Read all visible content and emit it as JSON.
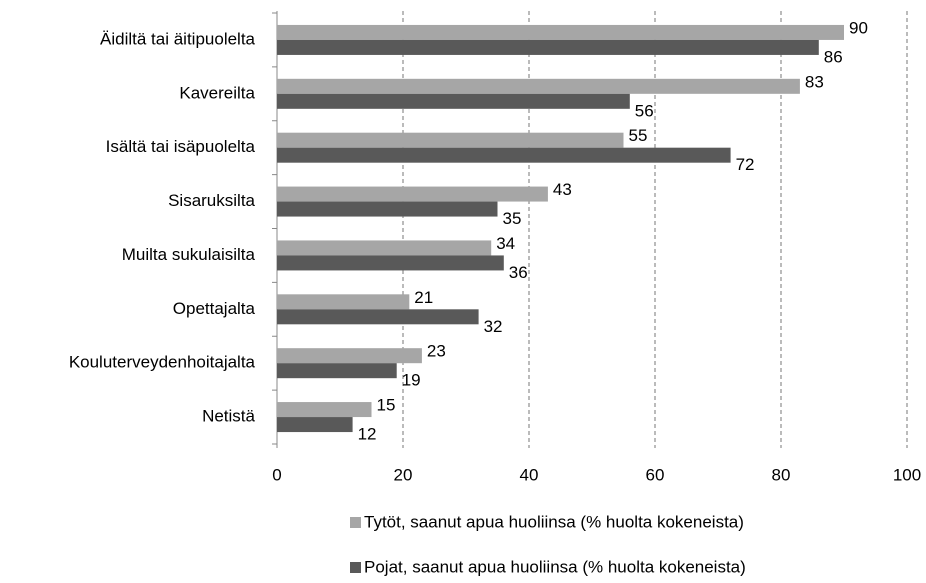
{
  "chart_data": {
    "type": "hbar",
    "categories": [
      "Äidiltä tai äitipuolelta",
      "Kavereilta",
      "Isältä tai isäpuolelta",
      "Sisaruksilta",
      "Muilta sukulaisilta",
      "Opettajalta",
      "Kouluterveydenhoitajalta",
      "Netistä"
    ],
    "series": [
      {
        "name": "Tytöt, saanut apua huoliinsa (% huolta kokeneista)",
        "color": "#a6a6a6",
        "values": [
          90,
          83,
          55,
          43,
          34,
          21,
          23,
          15
        ]
      },
      {
        "name": "Pojat, saanut apua huoliinsa (% huolta kokeneista)",
        "color": "#595959",
        "values": [
          86,
          56,
          72,
          35,
          36,
          32,
          19,
          12
        ]
      }
    ],
    "xlim": [
      0,
      100
    ],
    "xticks": [
      0,
      20,
      40,
      60,
      80,
      100
    ],
    "grid": true,
    "legend": "bottom"
  }
}
